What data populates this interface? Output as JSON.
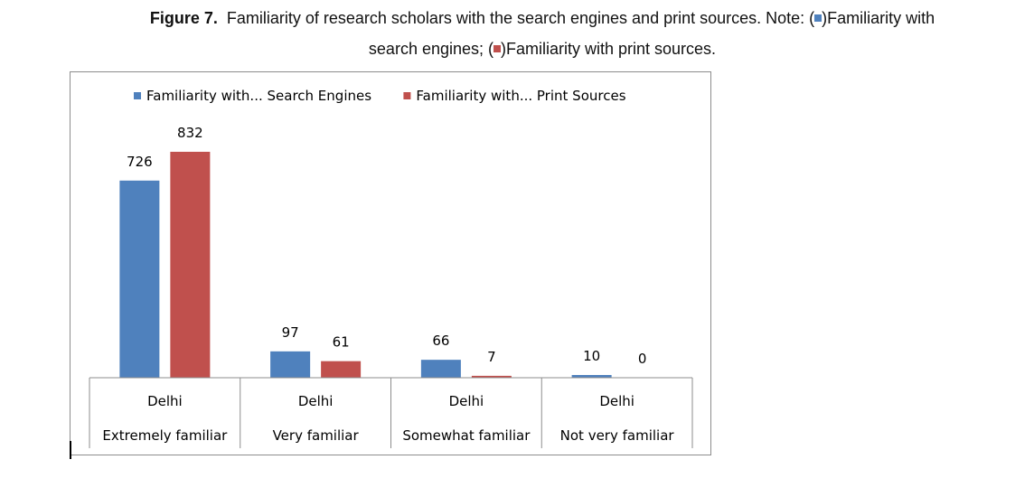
{
  "caption": {
    "figure_label": "Figure 7.",
    "text_line1": "Familiarity of research scholars with the search engines and print sources. Note: (",
    "text_mid": ")Familiarity with",
    "text_line2_start": "search engines; (",
    "text_line2_end": ")Familiarity with print sources."
  },
  "chart_data": {
    "type": "bar",
    "categories": [
      {
        "group": "Delhi",
        "label": "Extremely familiar"
      },
      {
        "group": "Delhi",
        "label": "Very familiar"
      },
      {
        "group": "Delhi",
        "label": "Somewhat familiar"
      },
      {
        "group": "Delhi",
        "label": "Not very familiar"
      }
    ],
    "series": [
      {
        "name": "Familiarity with... Search Engines",
        "color": "#4f81bd",
        "values": [
          726,
          97,
          66,
          10
        ]
      },
      {
        "name": "Familiarity with... Print Sources",
        "color": "#c0504d",
        "values": [
          832,
          61,
          7,
          0
        ]
      }
    ],
    "ylim": [
      0,
      1000
    ],
    "data_labels": true,
    "legend_position": "top",
    "grid": false
  }
}
